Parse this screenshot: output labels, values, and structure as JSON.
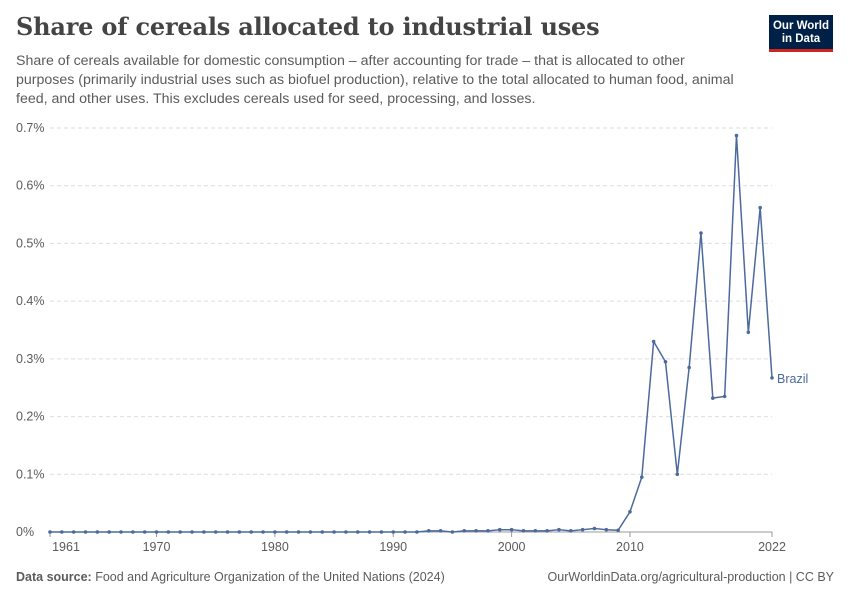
{
  "header": {
    "title": "Share of cereals allocated to industrial uses",
    "subtitle": "Share of cereals available for domestic consumption – after accounting for trade – that is allocated to other purposes (primarily industrial uses such as biofuel production), relative to the total allocated to human food, animal feed, and other uses. This excludes cereals used for seed, processing, and losses.",
    "logo_line1": "Our World",
    "logo_line2": "in Data"
  },
  "footer": {
    "source_label": "Data source:",
    "source_text": "Food and Agriculture Organization of the United Nations (2024)",
    "credit": "OurWorldinData.org/agricultural-production | CC BY"
  },
  "colors": {
    "series": "#4c6a9c",
    "grid": "#dddddd",
    "axis": "#999999",
    "text": "#5b5b5b",
    "title": "#444444",
    "logo_bg": "#002147",
    "logo_accent": "#ce261e"
  },
  "chart_data": {
    "type": "line",
    "title": "",
    "xlabel": "",
    "ylabel": "",
    "xlim": [
      1961,
      2022
    ],
    "ylim": [
      0,
      0.7
    ],
    "x_ticks": [
      1961,
      1970,
      1980,
      1990,
      2000,
      2010,
      2022
    ],
    "x_tick_labels": [
      "1961",
      "1970",
      "1980",
      "1990",
      "2000",
      "2010",
      "2022"
    ],
    "y_ticks": [
      0,
      0.1,
      0.2,
      0.3,
      0.4,
      0.5,
      0.6,
      0.7
    ],
    "y_tick_labels": [
      "0%",
      "0.1%",
      "0.2%",
      "0.3%",
      "0.4%",
      "0.5%",
      "0.6%",
      "0.7%"
    ],
    "grid": "horizontal dashed",
    "legend": "inline label at line end",
    "series": [
      {
        "name": "Brazil",
        "x": [
          1961,
          1962,
          1963,
          1964,
          1965,
          1966,
          1967,
          1968,
          1969,
          1970,
          1971,
          1972,
          1973,
          1974,
          1975,
          1976,
          1977,
          1978,
          1979,
          1980,
          1981,
          1982,
          1983,
          1984,
          1985,
          1986,
          1987,
          1988,
          1989,
          1990,
          1991,
          1992,
          1993,
          1994,
          1995,
          1996,
          1997,
          1998,
          1999,
          2000,
          2001,
          2002,
          2003,
          2004,
          2005,
          2006,
          2007,
          2008,
          2009,
          2010,
          2011,
          2012,
          2013,
          2014,
          2015,
          2016,
          2017,
          2018,
          2019,
          2020,
          2021,
          2022
        ],
        "values": [
          0,
          0,
          0,
          0,
          0,
          0,
          0,
          0,
          0,
          0,
          0,
          0,
          0,
          0,
          0,
          0,
          0,
          0,
          0,
          0,
          0,
          0,
          0,
          0,
          0,
          0,
          0,
          0,
          0,
          0,
          0,
          0,
          0.002,
          0.002,
          0,
          0.002,
          0.002,
          0.002,
          0.004,
          0.004,
          0.002,
          0.002,
          0.002,
          0.004,
          0.002,
          0.004,
          0.006,
          0.004,
          0.003,
          0.035,
          0.095,
          0.33,
          0.295,
          0.1,
          0.285,
          0.518,
          0.232,
          0.235,
          0.687,
          0.346,
          0.562,
          0.267
        ]
      }
    ]
  }
}
